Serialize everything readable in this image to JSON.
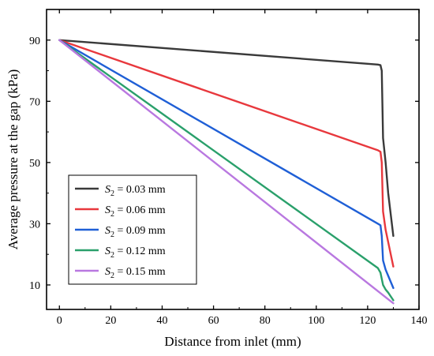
{
  "chart_data": {
    "type": "line",
    "xlabel": "Distance from inlet (mm)",
    "ylabel": "Average pressure at the gap (kPa)",
    "xlim": [
      -5,
      140
    ],
    "ylim": [
      2,
      100
    ],
    "xticks": [
      0,
      20,
      40,
      60,
      80,
      100,
      120,
      140
    ],
    "yticks": [
      10,
      30,
      50,
      70,
      90
    ],
    "legend_position": "bottom-left",
    "series": [
      {
        "name": "S2 = 0.03 mm",
        "label_var": "S",
        "label_sub": "2",
        "label_rest": " = 0.03 mm",
        "color": "#3a3a3a",
        "x": [
          0,
          124,
          125,
          125.5,
          126,
          127,
          128,
          130
        ],
        "y": [
          90,
          82,
          81.8,
          80,
          58,
          50,
          40,
          26
        ]
      },
      {
        "name": "S2 = 0.06 mm",
        "label_var": "S",
        "label_sub": "2",
        "label_rest": " = 0.06 mm",
        "color": "#e8383d",
        "x": [
          0,
          124,
          125,
          125.5,
          126,
          127,
          128,
          130
        ],
        "y": [
          90,
          54,
          53.5,
          50,
          34,
          28,
          24,
          16
        ]
      },
      {
        "name": "S2 = 0.09 mm",
        "label_var": "S",
        "label_sub": "2",
        "label_rest": " = 0.09 mm",
        "color": "#1f5fd6",
        "x": [
          0,
          124,
          125,
          125.5,
          126,
          127,
          128,
          130
        ],
        "y": [
          90,
          30,
          29.5,
          26,
          18,
          15,
          13,
          9
        ]
      },
      {
        "name": "S2 = 0.12 mm",
        "label_var": "S",
        "label_sub": "2",
        "label_rest": " = 0.12 mm",
        "color": "#2aa06b",
        "x": [
          0,
          124,
          125,
          126,
          127,
          128,
          130
        ],
        "y": [
          90,
          15.5,
          14,
          10,
          8.5,
          7.5,
          5
        ]
      },
      {
        "name": "S2 = 0.15 mm",
        "label_var": "S",
        "label_sub": "2",
        "label_rest": " = 0.15 mm",
        "color": "#b978e0",
        "x": [
          0,
          130
        ],
        "y": [
          90,
          4
        ]
      }
    ]
  }
}
